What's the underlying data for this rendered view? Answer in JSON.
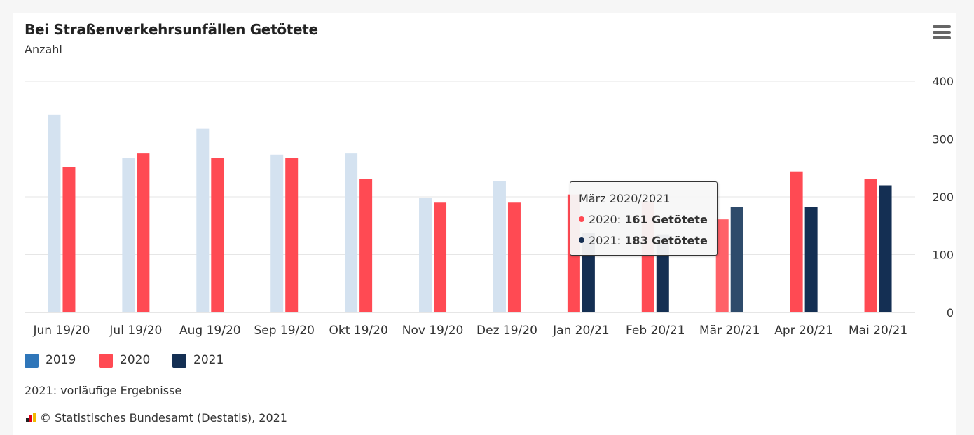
{
  "chart_data": {
    "type": "bar",
    "title": "Bei Straßenverkehrsunfällen Getötete",
    "subtitle": "Anzahl",
    "categories": [
      "Jun 19/20",
      "Jul 19/20",
      "Aug 19/20",
      "Sep 19/20",
      "Okt 19/20",
      "Nov 19/20",
      "Dez 19/20",
      "Jan 20/21",
      "Feb 20/21",
      "Mär 20/21",
      "Apr 20/21",
      "Mai 20/21"
    ],
    "series": [
      {
        "name": "2019",
        "color": "#d4e2f0",
        "legend_color": "#2f76b9",
        "values": [
          342,
          267,
          318,
          273,
          275,
          198,
          227,
          null,
          null,
          null,
          null,
          null
        ]
      },
      {
        "name": "2020",
        "color": "#ff4a53",
        "values": [
          252,
          275,
          267,
          267,
          231,
          190,
          190,
          204,
          192,
          161,
          244,
          231
        ]
      },
      {
        "name": "2021",
        "color": "#142f53",
        "values": [
          null,
          null,
          null,
          null,
          null,
          null,
          null,
          137,
          135,
          183,
          183,
          220
        ]
      }
    ],
    "ylim": [
      0,
      400
    ],
    "yticks": [
      0,
      100,
      200,
      300,
      400
    ],
    "y_axis_position": "right",
    "grid": true,
    "legend_position": "bottom-left",
    "highlighted_category": "Mär 20/21",
    "tooltip": {
      "header": "März 2020/2021",
      "rows": [
        {
          "series": "2020",
          "color": "#ff4a53",
          "value": "161 Getötete"
        },
        {
          "series": "2021",
          "color": "#142f53",
          "value": "183 Getötete"
        }
      ]
    },
    "note": "2021: vorläufige Ergebnisse",
    "credit": "© Statistisches Bundesamt (Destatis), 2021"
  },
  "menu_icon": "hamburger-menu-icon"
}
